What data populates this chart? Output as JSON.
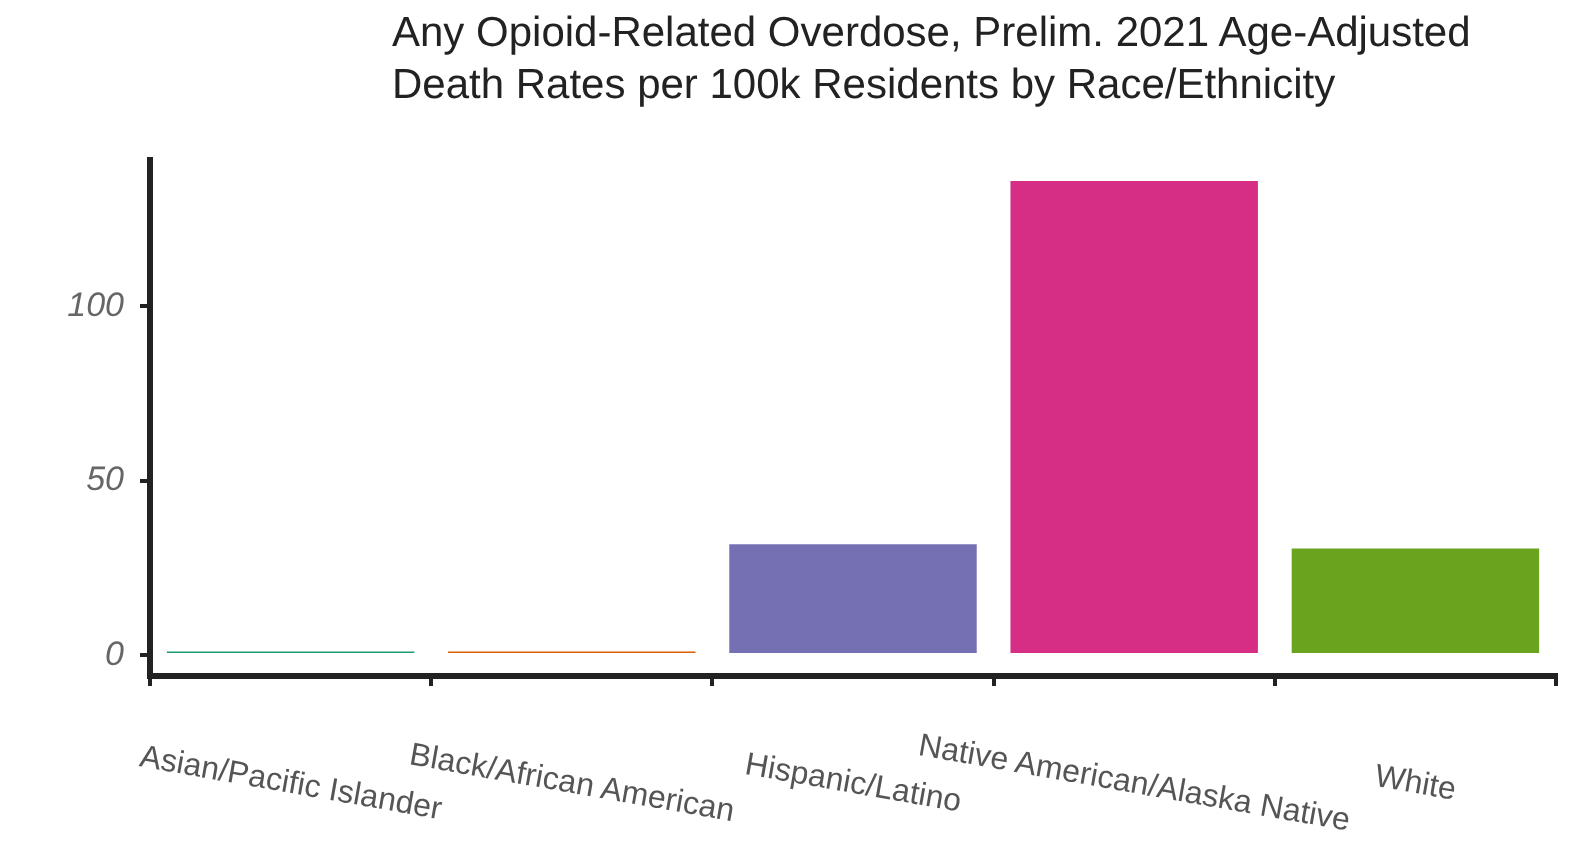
{
  "chart_data": {
    "type": "bar",
    "title": "Any Opioid-Related Overdose, Prelim. 2021 Age-Adjusted Death Rates per 100k Residents by Race/Ethnicity",
    "categories": [
      "Asian/Pacific Islander",
      "Black/African American",
      "Hispanic/Latino",
      "Native American/Alaska Native",
      "White"
    ],
    "values": [
      1,
      1,
      31.8,
      136,
      30.6
    ],
    "colors": [
      "#1b9e77",
      "#d95f02",
      "#7570b3",
      "#d62e84",
      "#6aa31d"
    ],
    "ylim": [
      -6,
      142
    ],
    "yticks": [
      0,
      50,
      100
    ],
    "grid": false,
    "legend": false
  }
}
